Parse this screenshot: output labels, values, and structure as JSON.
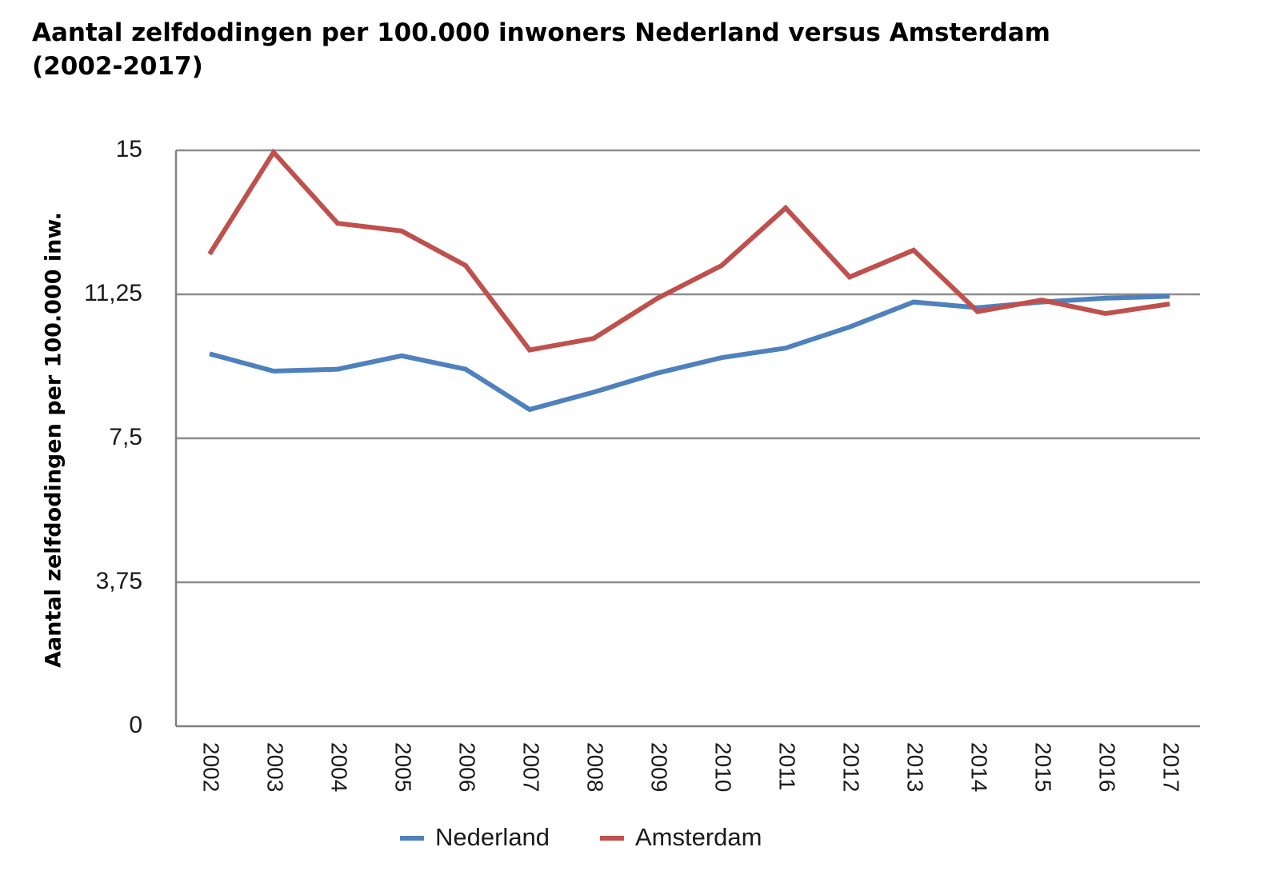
{
  "chart_data": {
    "type": "line",
    "title_line1": "Aantal zelfdodingen per 100.000 inwoners Nederland versus Amsterdam",
    "title_line2": "(2002-2017)",
    "xlabel": "",
    "ylabel": "Aantal zelfdodingen per 100.000 inw.",
    "ylim": [
      0,
      15
    ],
    "yticks": [
      "0",
      "3,75",
      "7,5",
      "11,25",
      "15"
    ],
    "ytick_values": [
      0,
      3.75,
      7.5,
      11.25,
      15
    ],
    "grid": true,
    "legend_position": "bottom",
    "categories": [
      "2002",
      "2003",
      "2004",
      "2005",
      "2006",
      "2007",
      "2008",
      "2009",
      "2010",
      "2011",
      "2012",
      "2013",
      "2014",
      "2015",
      "2016",
      "2017"
    ],
    "series": [
      {
        "name": "Nederland",
        "color": "#4f81bd",
        "values": [
          9.7,
          9.25,
          9.3,
          9.65,
          9.3,
          8.25,
          8.7,
          9.2,
          9.6,
          9.85,
          10.4,
          11.05,
          10.9,
          11.05,
          11.15,
          11.2
        ]
      },
      {
        "name": "Amsterdam",
        "color": "#c0504d",
        "values": [
          12.3,
          14.95,
          13.1,
          12.9,
          12.0,
          9.8,
          10.1,
          11.15,
          12.0,
          13.5,
          11.7,
          12.4,
          10.8,
          11.1,
          10.75,
          11.0
        ]
      }
    ]
  }
}
